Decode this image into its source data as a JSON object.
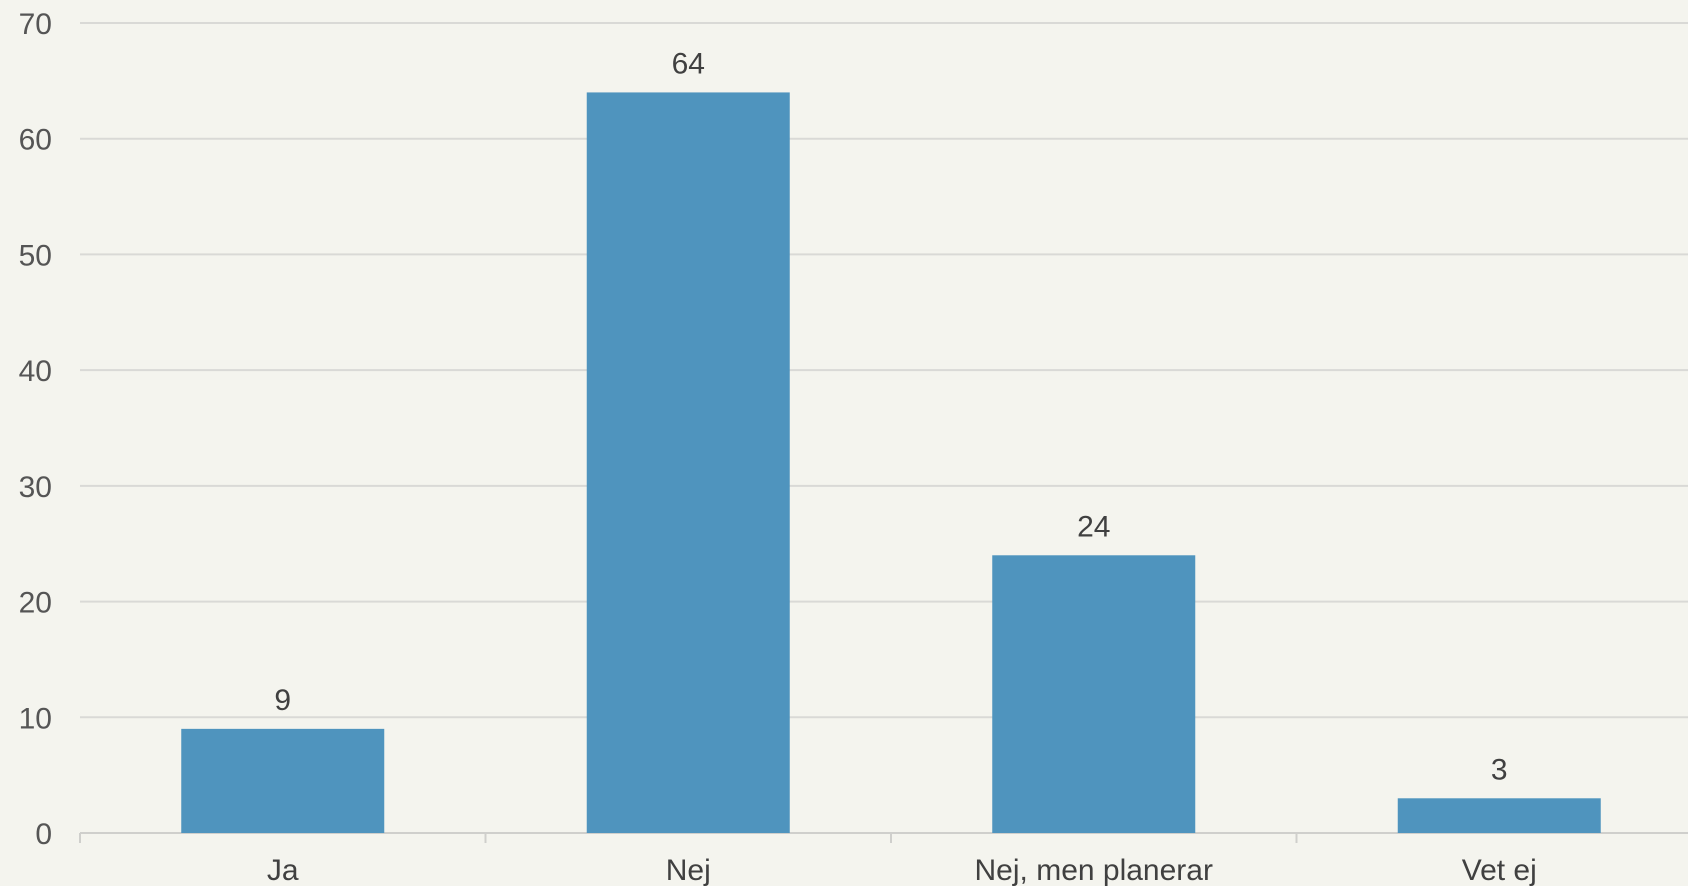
{
  "chart_data": {
    "type": "bar",
    "categories": [
      "Ja",
      "Nej",
      "Nej, men planerar",
      "Vet ej"
    ],
    "values": [
      9,
      64,
      24,
      3
    ],
    "data_labels": [
      "9",
      "64",
      "24",
      "3"
    ],
    "y_ticks": [
      "0",
      "10",
      "20",
      "30",
      "40",
      "50",
      "60",
      "70"
    ],
    "ylim": [
      0,
      70
    ],
    "grid": true,
    "legend": "none",
    "title": "",
    "xlabel": "",
    "ylabel": ""
  },
  "colors": {
    "background": "#f4f4ee",
    "bar": "#4f94be",
    "gridline": "#d9d9d6",
    "axis_line": "#cfcfcc",
    "tick_text": "#555555",
    "label_text": "#404040"
  }
}
